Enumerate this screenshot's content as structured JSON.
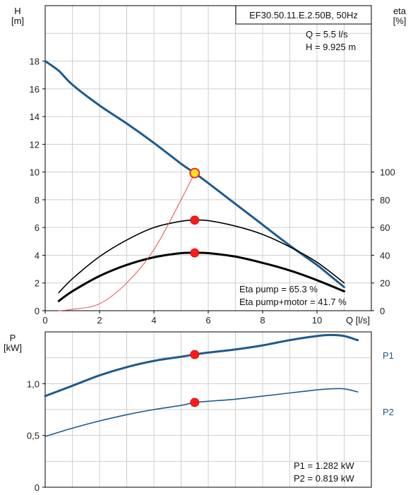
{
  "chart_data": [
    {
      "type": "line",
      "title": "EF30.50.11.E.2.50B, 50Hz",
      "xlabel": "Q [l/s]",
      "ylabel": "H\n[m]",
      "y2label": "eta\n[%]",
      "xlim": [
        0,
        12
      ],
      "ylim": [
        0,
        22
      ],
      "y2lim": [
        0,
        220
      ],
      "xticks": [
        "0",
        "2",
        "4",
        "6",
        "8",
        "10"
      ],
      "yticks": [
        "0",
        "2",
        "4",
        "6",
        "8",
        "10",
        "12",
        "14",
        "16",
        "18"
      ],
      "y2ticks": [
        "0",
        "20",
        "40",
        "60",
        "80",
        "100"
      ],
      "grid": true,
      "info": [
        "Q = 5.5 l/s",
        "H = 9.925 m"
      ],
      "notes": [
        "Eta pump = 65.3 %",
        "Eta pump+motor = 41.7 %"
      ],
      "series": [
        {
          "name": "",
          "axis": "left",
          "color": "#1e5a8c",
          "width": 3,
          "x": [
            0,
            0.5,
            1,
            2,
            3,
            4,
            5,
            5.5,
            6,
            7,
            8,
            9,
            10,
            10.5,
            11
          ],
          "y": [
            18,
            17.3,
            16.3,
            14.8,
            13.5,
            12.1,
            10.6,
            9.925,
            9.2,
            7.7,
            6.2,
            4.7,
            3.3,
            2.5,
            1.7
          ]
        },
        {
          "name": "",
          "axis": "right",
          "color": "#000000",
          "width": 1.6,
          "x": [
            0.5,
            1,
            2,
            3,
            4,
            5,
            5.5,
            6,
            7,
            8,
            9,
            10,
            11
          ],
          "y": [
            13,
            23,
            39,
            51,
            60,
            64.5,
            65.3,
            65,
            61,
            55,
            46,
            35,
            20
          ]
        },
        {
          "name": "",
          "axis": "right",
          "color": "#000000",
          "width": 3,
          "x": [
            0.5,
            1,
            2,
            3,
            4,
            5,
            5.5,
            6,
            7,
            8,
            9,
            10,
            11
          ],
          "y": [
            7,
            14,
            25,
            33,
            38.5,
            41.5,
            41.7,
            41.5,
            39,
            34.5,
            29,
            22,
            14
          ]
        },
        {
          "name": "",
          "axis": "left",
          "color": "#e05050",
          "width": 1,
          "x": [
            0.5,
            1,
            2,
            3,
            4,
            5,
            5.5
          ],
          "y": [
            0,
            0.1,
            0.5,
            2,
            4.4,
            8,
            9.925
          ]
        }
      ],
      "points": [
        {
          "x": 5.5,
          "y": 9.925,
          "axis": "left",
          "kind": "duty"
        },
        {
          "x": 5.5,
          "y": 65.3,
          "axis": "right",
          "kind": "marker"
        },
        {
          "x": 5.5,
          "y": 41.7,
          "axis": "right",
          "kind": "marker"
        }
      ]
    },
    {
      "type": "line",
      "xlim": [
        0,
        12
      ],
      "ylim": [
        0,
        1.5
      ],
      "ylabel": "P\n[kW]",
      "yticks": [
        {
          "v": 0,
          "t": "0"
        },
        {
          "v": 0.5,
          "t": "0,5"
        },
        {
          "v": 1.0,
          "t": "1,0"
        }
      ],
      "grid": true,
      "notes": [
        "P1 = 1.282 kW",
        "P2 = 0.819 kW"
      ],
      "series": [
        {
          "name": "P1",
          "color": "#1e5a8c",
          "width": 3,
          "x": [
            0,
            1,
            2,
            3,
            4,
            5,
            5.5,
            6,
            7,
            8,
            9,
            10,
            10.5,
            11,
            11.5
          ],
          "y": [
            0.88,
            0.98,
            1.08,
            1.16,
            1.22,
            1.26,
            1.282,
            1.3,
            1.33,
            1.37,
            1.42,
            1.46,
            1.47,
            1.46,
            1.42
          ]
        },
        {
          "name": "P2",
          "color": "#1e5a8c",
          "width": 1.6,
          "x": [
            0,
            1,
            2,
            3,
            4,
            5,
            5.5,
            6,
            7,
            8,
            9,
            10,
            10.5,
            11,
            11.5
          ],
          "y": [
            0.49,
            0.57,
            0.64,
            0.7,
            0.75,
            0.79,
            0.819,
            0.83,
            0.85,
            0.88,
            0.91,
            0.94,
            0.95,
            0.95,
            0.92
          ]
        }
      ],
      "points": [
        {
          "x": 5.5,
          "y": 1.282,
          "kind": "marker"
        },
        {
          "x": 5.5,
          "y": 0.819,
          "kind": "marker"
        }
      ]
    }
  ]
}
